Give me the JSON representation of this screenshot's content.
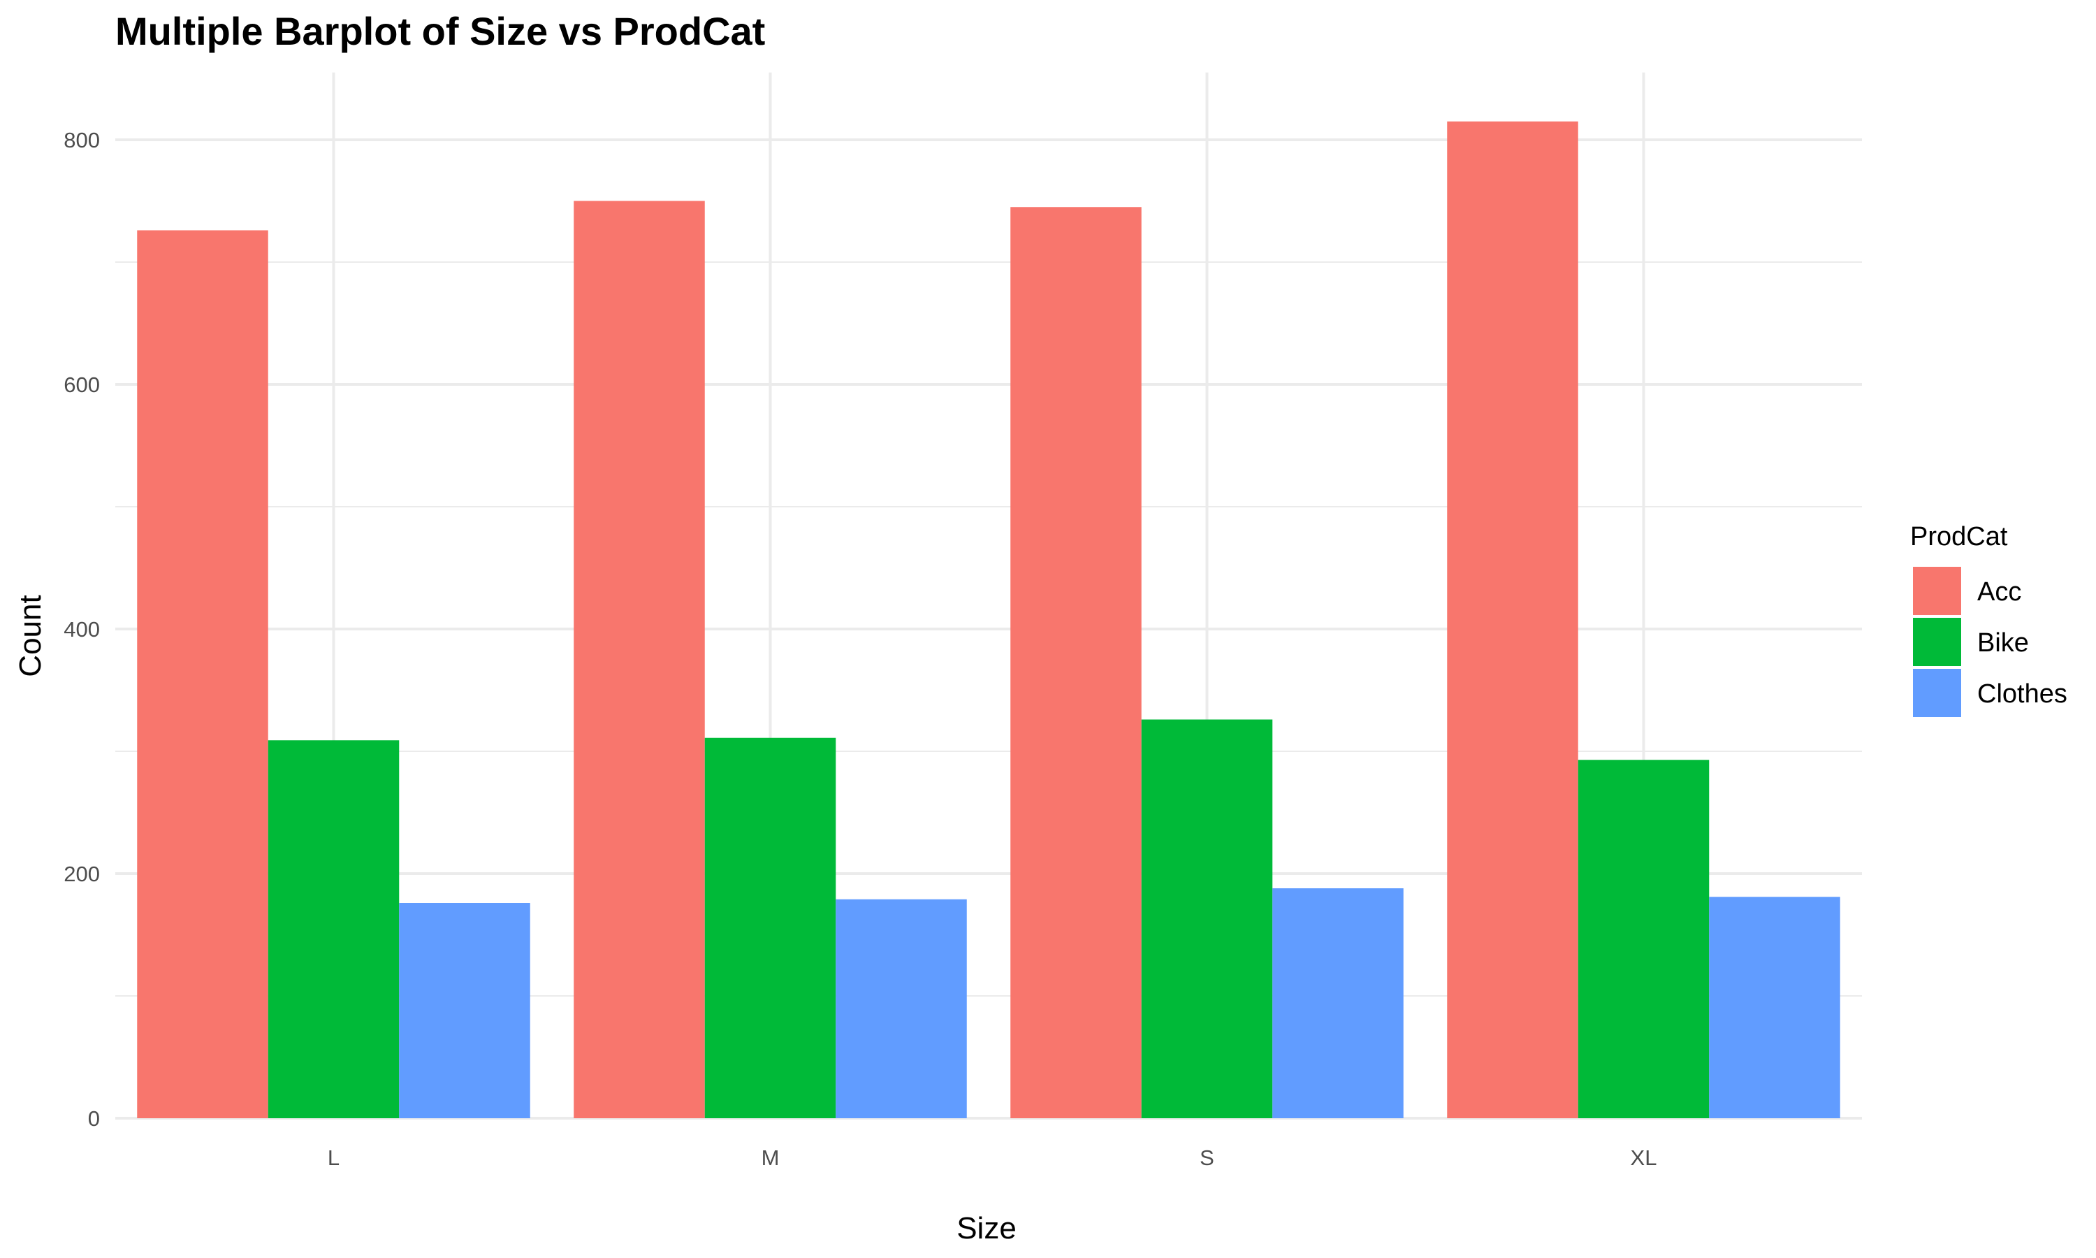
{
  "chart_data": {
    "type": "bar",
    "title": "Multiple Barplot of Size vs ProdCat",
    "xlabel": "Size",
    "ylabel": "Count",
    "categories": [
      "L",
      "M",
      "S",
      "XL"
    ],
    "series": [
      {
        "name": "Acc",
        "color": "#F8766D",
        "values": [
          726,
          750,
          745,
          815
        ]
      },
      {
        "name": "Bike",
        "color": "#00BA38",
        "values": [
          309,
          311,
          326,
          293
        ]
      },
      {
        "name": "Clothes",
        "color": "#619CFF",
        "values": [
          176,
          179,
          188,
          181
        ]
      }
    ],
    "ylim": [
      0,
      855
    ],
    "yticks": [
      "0",
      "200",
      "400",
      "600",
      "800"
    ],
    "ytick_values": [
      0,
      200,
      400,
      600,
      800
    ],
    "grid": true,
    "legend": {
      "title": "ProdCat",
      "placement": "right"
    }
  }
}
